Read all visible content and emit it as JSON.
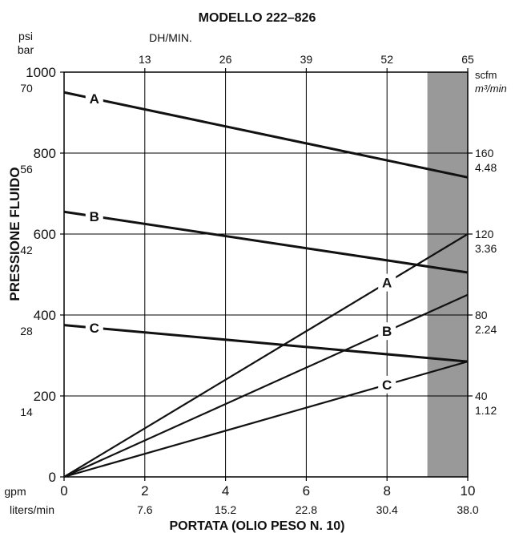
{
  "chart_data": {
    "type": "line",
    "title": "MODELLO 222–826",
    "xlabel": "PORTATA (OLIO PESO N. 10)",
    "ylabel": "PRESSIONE FLUIDO",
    "x_unit_primary": "gpm",
    "x_unit_secondary": "liters/min",
    "y_unit_primary": "psi",
    "y_unit_secondary": "bar",
    "top_axis_label": "DH/MIN.",
    "right_unit_primary": "scfm",
    "right_unit_secondary": "m³/min",
    "xlim": [
      0,
      10
    ],
    "ylim": [
      0,
      1000
    ],
    "x_ticks": [
      {
        "gpm": "0",
        "lpm": ""
      },
      {
        "gpm": "2",
        "lpm": "7.6"
      },
      {
        "gpm": "4",
        "lpm": "15.2"
      },
      {
        "gpm": "6",
        "lpm": "22.8"
      },
      {
        "gpm": "8",
        "lpm": "30.4"
      },
      {
        "gpm": "10",
        "lpm": "38.0"
      }
    ],
    "y_ticks": [
      {
        "psi": "0",
        "bar": ""
      },
      {
        "psi": "200",
        "bar": "14"
      },
      {
        "psi": "400",
        "bar": "28"
      },
      {
        "psi": "600",
        "bar": "42"
      },
      {
        "psi": "800",
        "bar": "56"
      },
      {
        "psi": "1000",
        "bar": "70"
      }
    ],
    "top_ticks": [
      "13",
      "26",
      "39",
      "52",
      "65"
    ],
    "right_ticks": [
      {
        "scfm": "40",
        "m3": "1.12"
      },
      {
        "scfm": "80",
        "m3": "2.24"
      },
      {
        "scfm": "120",
        "m3": "3.36"
      },
      {
        "scfm": "160",
        "m3": "4.48"
      }
    ],
    "shaded_region": {
      "x_from": 9,
      "x_to": 10,
      "color": "#999999"
    },
    "pressure_series": [
      {
        "name": "A",
        "x": [
          0,
          10
        ],
        "y": [
          950,
          740
        ]
      },
      {
        "name": "B",
        "x": [
          0,
          10
        ],
        "y": [
          655,
          505
        ]
      },
      {
        "name": "C",
        "x": [
          0,
          10
        ],
        "y": [
          375,
          285
        ]
      }
    ],
    "air_series": [
      {
        "name": "A",
        "x": [
          0,
          10
        ],
        "y": [
          0,
          600
        ]
      },
      {
        "name": "B",
        "x": [
          0,
          10
        ],
        "y": [
          0,
          450
        ]
      },
      {
        "name": "C",
        "x": [
          0,
          10
        ],
        "y": [
          0,
          285
        ]
      }
    ],
    "grid": true,
    "colors": {
      "line": "#111111",
      "shade": "#999999",
      "grid": "#000000"
    }
  }
}
